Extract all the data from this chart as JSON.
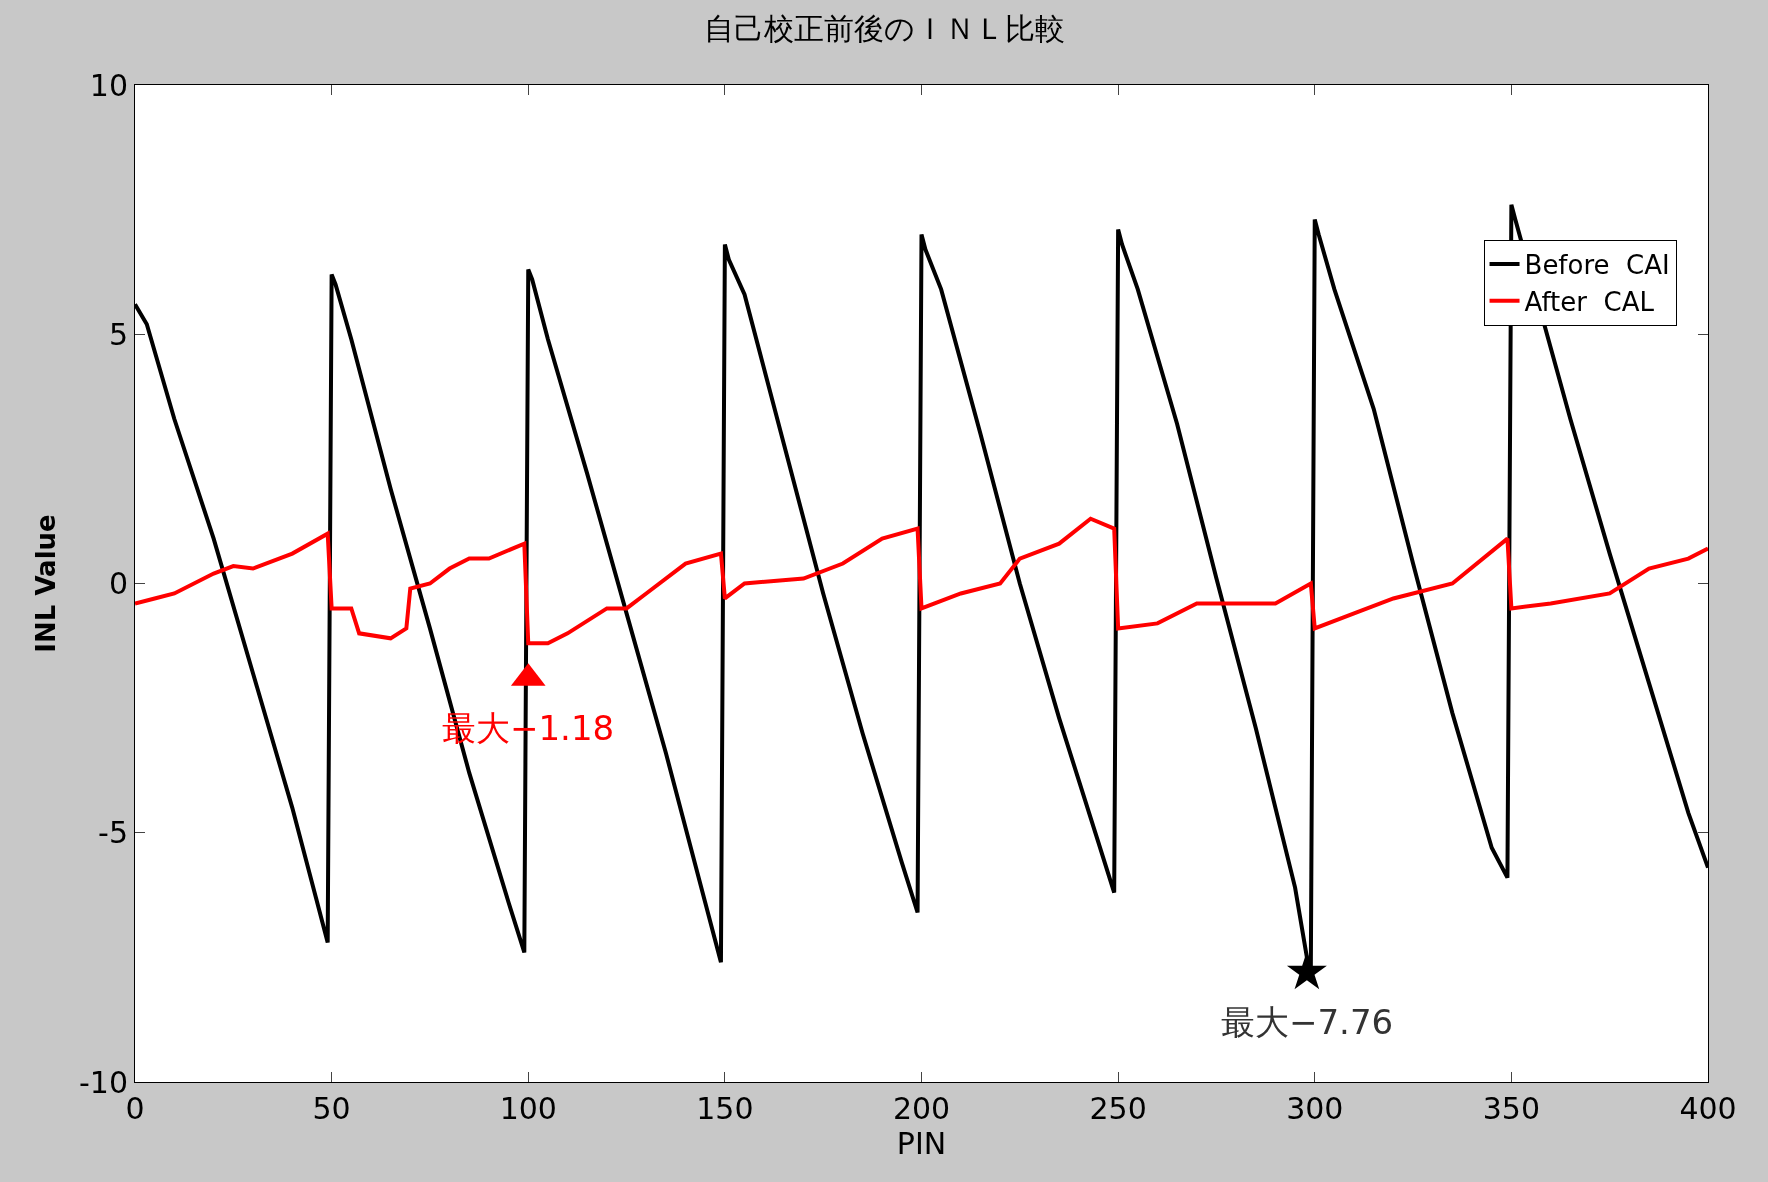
{
  "chart_data": {
    "type": "line",
    "title": "自己校正前後のＩＮＬ比較",
    "xlabel": "PIN",
    "ylabel": "INL Value",
    "xlim": [
      0,
      400
    ],
    "ylim": [
      -10,
      10
    ],
    "xticks": [
      0,
      50,
      100,
      150,
      200,
      250,
      300,
      350,
      400
    ],
    "yticks": [
      -10,
      -5,
      0,
      5,
      10
    ],
    "legend": "top right",
    "line_style": "solid",
    "marker": "none",
    "series": [
      {
        "name": "Before  CAI",
        "color": "#000000",
        "x": [
          0,
          3,
          10,
          20,
          30,
          40,
          46,
          49,
          50,
          51,
          55,
          65,
          75,
          85,
          95,
          99,
          100,
          101,
          105,
          115,
          125,
          135,
          145,
          149,
          150,
          151,
          155,
          165,
          175,
          185,
          195,
          199,
          200,
          201,
          205,
          215,
          225,
          235,
          245,
          249,
          250,
          251,
          255,
          265,
          275,
          285,
          295,
          298,
          299,
          300,
          301,
          305,
          315,
          325,
          335,
          345,
          349,
          350,
          351,
          365,
          375,
          385,
          395,
          400
        ],
        "values": [
          5.6,
          5.2,
          3.3,
          0.9,
          -1.8,
          -4.5,
          -6.3,
          -7.2,
          6.2,
          6.0,
          4.9,
          1.9,
          -0.9,
          -3.8,
          -6.4,
          -7.4,
          6.3,
          6.1,
          4.9,
          2.2,
          -0.6,
          -3.4,
          -6.4,
          -7.6,
          6.8,
          6.5,
          5.8,
          2.8,
          -0.2,
          -3.0,
          -5.6,
          -6.6,
          7.0,
          6.7,
          5.9,
          3.0,
          0.0,
          -2.7,
          -5.2,
          -6.2,
          7.1,
          6.8,
          5.9,
          3.2,
          0.1,
          -2.9,
          -6.1,
          -7.5,
          -7.76,
          7.3,
          7.0,
          5.9,
          3.5,
          0.4,
          -2.6,
          -5.3,
          -5.9,
          7.6,
          7.3,
          3.3,
          0.6,
          -2.0,
          -4.6,
          -5.7
        ]
      },
      {
        "name": "After  CAL",
        "color": "#ff0000",
        "x": [
          0,
          5,
          10,
          20,
          25,
          30,
          40,
          49,
          50,
          55,
          57,
          65,
          69,
          70,
          75,
          80,
          85,
          90,
          99,
          100,
          105,
          110,
          120,
          125,
          130,
          140,
          149,
          150,
          155,
          170,
          180,
          190,
          199,
          200,
          210,
          220,
          225,
          235,
          243,
          249,
          250,
          260,
          270,
          290,
          299,
          300,
          310,
          320,
          335,
          349,
          350,
          360,
          375,
          385,
          395,
          400
        ],
        "values": [
          -0.4,
          -0.3,
          -0.2,
          0.2,
          0.35,
          0.3,
          0.6,
          1.0,
          -0.5,
          -0.5,
          -1.0,
          -1.1,
          -0.9,
          -0.1,
          0.0,
          0.3,
          0.5,
          0.5,
          0.8,
          -1.2,
          -1.2,
          -1.0,
          -0.5,
          -0.5,
          -0.2,
          0.4,
          0.6,
          -0.3,
          0.0,
          0.1,
          0.4,
          0.9,
          1.1,
          -0.5,
          -0.2,
          0.0,
          0.5,
          0.8,
          1.3,
          1.1,
          -0.9,
          -0.8,
          -0.4,
          -0.4,
          0.0,
          -0.9,
          -0.6,
          -0.3,
          0.0,
          0.9,
          -0.5,
          -0.4,
          -0.2,
          0.3,
          0.5,
          0.7
        ]
      },
      {
        "type": "scatter",
        "marker": "triangle",
        "color": "#ff0000",
        "x": [
          100
        ],
        "values": [
          -1.9
        ]
      },
      {
        "type": "scatter",
        "marker": "star",
        "color": "#000000",
        "x": [
          298
        ],
        "values": [
          -7.8
        ]
      }
    ],
    "annotations": [
      {
        "text": "最大−1.18",
        "x": 100,
        "y": -1.9
      },
      {
        "text": "最大−7.76",
        "x": 298,
        "y": -7.8
      }
    ]
  }
}
